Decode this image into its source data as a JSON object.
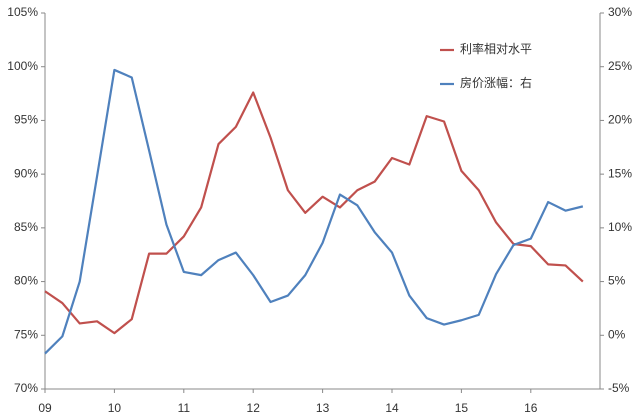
{
  "chart_data": {
    "type": "line",
    "categories": [
      "09",
      null,
      null,
      null,
      "10",
      null,
      null,
      null,
      "11",
      null,
      null,
      null,
      "12",
      null,
      null,
      null,
      "13",
      null,
      null,
      null,
      "14",
      null,
      null,
      null,
      "15",
      null,
      null,
      null,
      "16",
      null,
      null,
      null
    ],
    "series": [
      {
        "name": "利率相对水平",
        "color": "#c0504d",
        "axis": "y",
        "values": [
          79.1,
          78.0,
          76.1,
          76.3,
          75.2,
          76.5,
          82.6,
          82.6,
          84.2,
          86.9,
          92.8,
          94.4,
          97.6,
          93.4,
          88.5,
          86.4,
          87.9,
          86.9,
          88.5,
          89.3,
          91.5,
          90.9,
          95.4,
          94.9,
          90.3,
          88.5,
          85.5,
          83.5,
          83.3,
          81.6,
          81.5,
          80.0
        ]
      },
      {
        "name": "房价涨幅：右",
        "color": "#4f81bd",
        "axis": "y2",
        "values": [
          -1.7,
          -0.1,
          5.0,
          14.8,
          24.7,
          24.0,
          17.2,
          10.3,
          5.9,
          5.6,
          7.0,
          7.7,
          5.6,
          3.1,
          3.7,
          5.6,
          8.6,
          13.1,
          12.1,
          9.6,
          7.7,
          3.7,
          1.6,
          1.0,
          1.4,
          1.9,
          5.7,
          8.4,
          9.0,
          12.4,
          11.6,
          12.0
        ]
      }
    ],
    "ylim": [
      70,
      105
    ],
    "yticks": [
      {
        "value": 70,
        "label": "70%"
      },
      {
        "value": 75,
        "label": "75%"
      },
      {
        "value": 80,
        "label": "80%"
      },
      {
        "value": 85,
        "label": "85%"
      },
      {
        "value": 90,
        "label": "90%"
      },
      {
        "value": 95,
        "label": "95%"
      },
      {
        "value": 100,
        "label": "100%"
      },
      {
        "value": 105,
        "label": "105%"
      }
    ],
    "y2lim": [
      -5,
      30
    ],
    "y2ticks": [
      {
        "value": -5,
        "label": "-5%"
      },
      {
        "value": 0,
        "label": "0%"
      },
      {
        "value": 5,
        "label": "5%"
      },
      {
        "value": 10,
        "label": "10%"
      },
      {
        "value": 15,
        "label": "15%"
      },
      {
        "value": 20,
        "label": "20%"
      },
      {
        "value": 25,
        "label": "25%"
      },
      {
        "value": 30,
        "label": "30%"
      }
    ],
    "grid": false,
    "legend": "upper right"
  }
}
